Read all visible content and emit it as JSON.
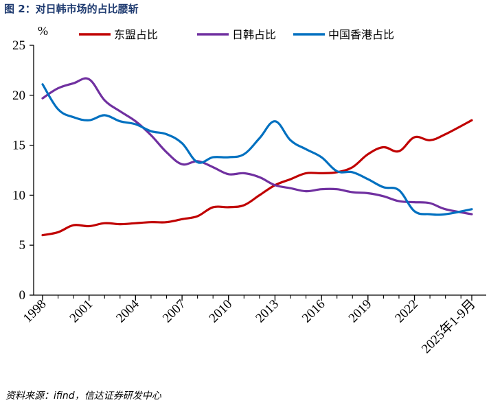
{
  "title": "图 2：对日韩市场的占比腰斩",
  "source": "资料来源：ifind，信达证券研发中心",
  "chart_data": {
    "type": "line",
    "unit_label": "%",
    "ylim": [
      0,
      25
    ],
    "yticks": [
      0,
      5,
      10,
      15,
      20,
      25
    ],
    "xlim": [
      1998,
      2025.7
    ],
    "xtick_labels": [
      "1998",
      "2001",
      "2004",
      "2007",
      "2010",
      "2013",
      "2016",
      "2019",
      "2022",
      "2025年1-9月"
    ],
    "xtick_values": [
      1998,
      2001,
      2004,
      2007,
      2010,
      2013,
      2016,
      2019,
      2022,
      2025.7
    ],
    "legend_position": "top",
    "grid": false,
    "x": [
      1998,
      1999,
      2000,
      2001,
      2002,
      2003,
      2004,
      2005,
      2006,
      2007,
      2008,
      2009,
      2010,
      2011,
      2012,
      2013,
      2014,
      2015,
      2016,
      2017,
      2018,
      2019,
      2020,
      2021,
      2022,
      2023,
      2024,
      2025.7
    ],
    "series": [
      {
        "name": "东盟占比",
        "color": "#c00000",
        "values": [
          6.0,
          6.3,
          7.0,
          6.9,
          7.2,
          7.1,
          7.2,
          7.3,
          7.3,
          7.6,
          7.9,
          8.8,
          8.8,
          9.0,
          10.0,
          11.0,
          11.6,
          12.2,
          12.2,
          12.3,
          12.8,
          14.1,
          14.8,
          14.4,
          15.8,
          15.5,
          16.1,
          17.5
        ]
      },
      {
        "name": "日韩占比",
        "color": "#7030a0",
        "values": [
          19.7,
          20.7,
          21.2,
          21.6,
          19.5,
          18.4,
          17.4,
          16.0,
          14.3,
          13.1,
          13.4,
          12.8,
          12.1,
          12.2,
          11.8,
          11.0,
          10.7,
          10.4,
          10.6,
          10.6,
          10.3,
          10.2,
          9.9,
          9.4,
          9.3,
          9.2,
          8.6,
          8.1
        ]
      },
      {
        "name": "中国香港占比",
        "color": "#0070c0",
        "values": [
          21.1,
          18.6,
          17.8,
          17.5,
          18.0,
          17.4,
          17.1,
          16.4,
          16.1,
          15.2,
          13.3,
          13.8,
          13.8,
          14.1,
          15.7,
          17.4,
          15.5,
          14.6,
          13.8,
          12.4,
          12.3,
          11.6,
          10.8,
          10.5,
          8.4,
          8.1,
          8.1,
          8.6
        ]
      }
    ]
  }
}
